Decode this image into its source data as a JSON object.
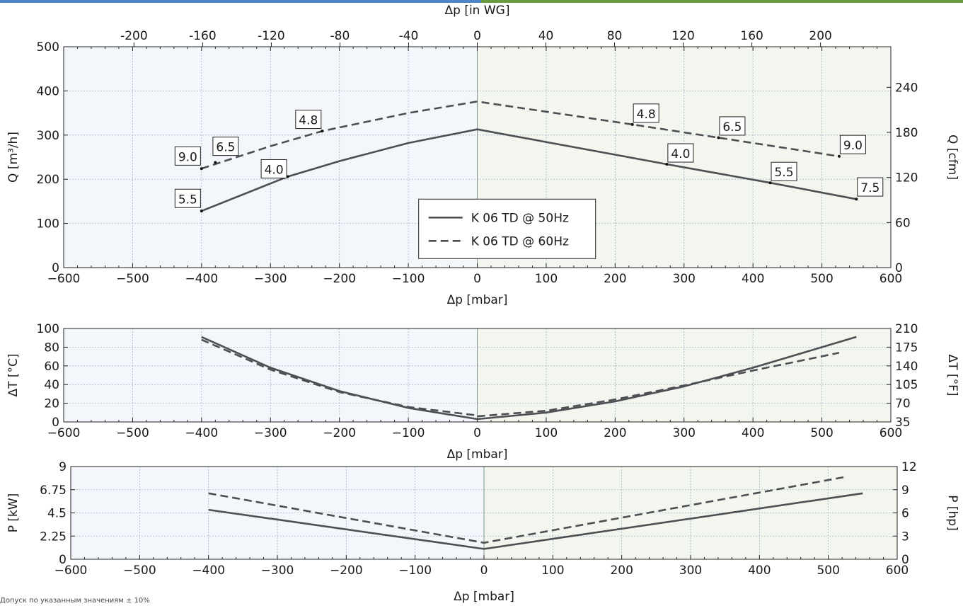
{
  "colors": {
    "header_left": "#4a86c5",
    "header_right": "#6a9a40",
    "bg_negative": "#f3f7fc",
    "bg_positive": "#f2f6ef",
    "curve": "#4d4f52",
    "grid": "#9fb3c8",
    "zero_line": "#7f9a86"
  },
  "footnote": "Допуск по указанным значениям ± 10%",
  "chart_data": [
    {
      "type": "line",
      "id": "flow",
      "xlabel": "Δp [mbar]",
      "x2label": "Δp [in WG]",
      "ylabel": "Q [m³/h]",
      "y2label": "Q [cfm]",
      "xlim": [
        -600,
        600
      ],
      "ylim": [
        0,
        500
      ],
      "y2lim": [
        0,
        294
      ],
      "x_ticks": [
        -600,
        -500,
        -400,
        -300,
        -200,
        -100,
        0,
        100,
        200,
        300,
        400,
        500,
        600
      ],
      "x_tick_labels": [
        "−600",
        "−500",
        "−400",
        "−300",
        "−200",
        "−100",
        "0",
        "100",
        "200",
        "300",
        "400",
        "500",
        "600"
      ],
      "x2_ticks": [
        -200,
        -160,
        -120,
        -80,
        -40,
        0,
        40,
        80,
        120,
        160,
        200
      ],
      "x2_tick_labels": [
        "-200",
        "-160",
        "-120",
        "-80",
        "-40",
        "0",
        "40",
        "80",
        "120",
        "160",
        "200"
      ],
      "y_ticks": [
        0,
        100,
        200,
        300,
        400,
        500
      ],
      "y_tick_labels": [
        "0",
        "100",
        "200",
        "300",
        "400",
        "500"
      ],
      "y2_ticks": [
        0,
        60,
        120,
        180,
        240
      ],
      "y2_tick_labels": [
        "0",
        "60",
        "120",
        "180",
        "240"
      ],
      "grid": true,
      "legend": {
        "position": "center",
        "entries": [
          {
            "label": "K 06 TD @ 50Hz",
            "style": "solid"
          },
          {
            "label": "K 06 TD @ 60Hz",
            "style": "dashed"
          }
        ]
      },
      "series": [
        {
          "name": "K 06 TD @ 50Hz",
          "style": "solid",
          "points": [
            [
              -400,
              128
            ],
            [
              -275,
              206
            ],
            [
              -200,
              241
            ],
            [
              -100,
              282
            ],
            [
              0,
              313
            ],
            [
              0,
              313
            ],
            [
              275,
              234
            ],
            [
              425,
              192
            ],
            [
              550,
              155
            ]
          ]
        },
        {
          "name": "K 06 TD @ 60Hz",
          "style": "dashed",
          "points": [
            [
              -400,
              224
            ],
            [
              -300,
              275
            ],
            [
              -225,
              309
            ],
            [
              -100,
              350
            ],
            [
              0,
              376
            ],
            [
              0,
              376
            ],
            [
              225,
              324
            ],
            [
              350,
              294
            ],
            [
              525,
              252
            ]
          ]
        }
      ],
      "annotations": [
        {
          "text": "5.5",
          "point": [
            -400,
            128
          ],
          "label_at": [
            -420,
            155
          ]
        },
        {
          "text": "4.0",
          "point": [
            -275,
            206
          ],
          "label_at": [
            -295,
            222
          ]
        },
        {
          "text": "9.0",
          "point": [
            -400,
            224
          ],
          "label_at": [
            -420,
            251
          ]
        },
        {
          "text": "6.5",
          "point": [
            -380,
            238
          ],
          "label_at": [
            -365,
            273
          ]
        },
        {
          "text": "4.8",
          "point": [
            -225,
            309
          ],
          "label_at": [
            -245,
            334
          ]
        },
        {
          "text": "4.8",
          "point": [
            225,
            324
          ],
          "label_at": [
            245,
            348
          ]
        },
        {
          "text": "6.5",
          "point": [
            350,
            294
          ],
          "label_at": [
            370,
            319
          ]
        },
        {
          "text": "4.0",
          "point": [
            275,
            234
          ],
          "label_at": [
            295,
            258
          ]
        },
        {
          "text": "5.5",
          "point": [
            425,
            192
          ],
          "label_at": [
            445,
            216
          ]
        },
        {
          "text": "9.0",
          "point": [
            525,
            252
          ],
          "label_at": [
            545,
            277
          ]
        },
        {
          "text": "7.5",
          "point": [
            550,
            155
          ],
          "label_at": [
            570,
            181
          ]
        }
      ]
    },
    {
      "type": "line",
      "id": "temperature",
      "xlabel": "Δp [mbar]",
      "ylabel": "ΔT [°C]",
      "y2label": "ΔT [°F]",
      "xlim": [
        -600,
        600
      ],
      "ylim": [
        0,
        100
      ],
      "y2lim": [
        35,
        210
      ],
      "x_ticks": [
        -600,
        -500,
        -400,
        -300,
        -200,
        -100,
        0,
        100,
        200,
        300,
        400,
        500,
        600
      ],
      "x_tick_labels": [
        "−600",
        "−500",
        "−400",
        "−300",
        "−200",
        "−100",
        "0",
        "100",
        "200",
        "300",
        "400",
        "500",
        "600"
      ],
      "y_ticks": [
        0,
        20,
        40,
        60,
        80,
        100
      ],
      "y_tick_labels": [
        "0",
        "20",
        "40",
        "60",
        "80",
        "100"
      ],
      "y2_ticks": [
        35,
        70,
        105,
        140,
        175,
        210
      ],
      "y2_tick_labels": [
        "35",
        "70",
        "105",
        "140",
        "175",
        "210"
      ],
      "grid": true,
      "series": [
        {
          "name": "K 06 TD @ 50Hz",
          "style": "solid",
          "points": [
            [
              -400,
              91
            ],
            [
              -300,
              58
            ],
            [
              -200,
              33
            ],
            [
              -100,
              15
            ],
            [
              0,
              3
            ],
            [
              0,
              3
            ],
            [
              100,
              10
            ],
            [
              200,
              22
            ],
            [
              300,
              38
            ],
            [
              400,
              58
            ],
            [
              500,
              80
            ],
            [
              550,
              91
            ]
          ]
        },
        {
          "name": "K 06 TD @ 60Hz",
          "style": "dashed",
          "points": [
            [
              -400,
              88
            ],
            [
              -300,
              56
            ],
            [
              -200,
              32
            ],
            [
              -100,
              16
            ],
            [
              0,
              7
            ],
            [
              0,
              6
            ],
            [
              100,
              12
            ],
            [
              200,
              24
            ],
            [
              300,
              39
            ],
            [
              400,
              55
            ],
            [
              525,
              74
            ]
          ]
        }
      ]
    },
    {
      "type": "line",
      "id": "power",
      "xlabel": "Δp [mbar]",
      "ylabel": "P [kW]",
      "y2label": "P [hp]",
      "xlim": [
        -600,
        600
      ],
      "ylim": [
        0,
        9
      ],
      "y2lim": [
        0,
        12
      ],
      "x_ticks": [
        -600,
        -500,
        -400,
        -300,
        -200,
        -100,
        0,
        100,
        200,
        300,
        400,
        500,
        600
      ],
      "x_tick_labels": [
        "−600",
        "−500",
        "−400",
        "−300",
        "−200",
        "−100",
        "0",
        "100",
        "200",
        "300",
        "400",
        "500",
        "600"
      ],
      "y_ticks": [
        0,
        2.25,
        4.5,
        6.75,
        9
      ],
      "y_tick_labels": [
        "0",
        "2.25",
        "4.5",
        "6.75",
        "9"
      ],
      "y2_ticks": [
        0,
        3,
        6,
        9,
        12
      ],
      "y2_tick_labels": [
        "0",
        "3",
        "6",
        "9",
        "12"
      ],
      "grid": true,
      "series": [
        {
          "name": "K 06 TD @ 50Hz",
          "style": "solid",
          "points": [
            [
              -400,
              4.8
            ],
            [
              0,
              1.0
            ],
            [
              0,
              1.0
            ],
            [
              550,
              6.4
            ]
          ]
        },
        {
          "name": "K 06 TD @ 60Hz",
          "style": "dashed",
          "points": [
            [
              -400,
              6.4
            ],
            [
              0,
              1.6
            ],
            [
              0,
              1.6
            ],
            [
              525,
              8.0
            ]
          ]
        }
      ]
    }
  ]
}
